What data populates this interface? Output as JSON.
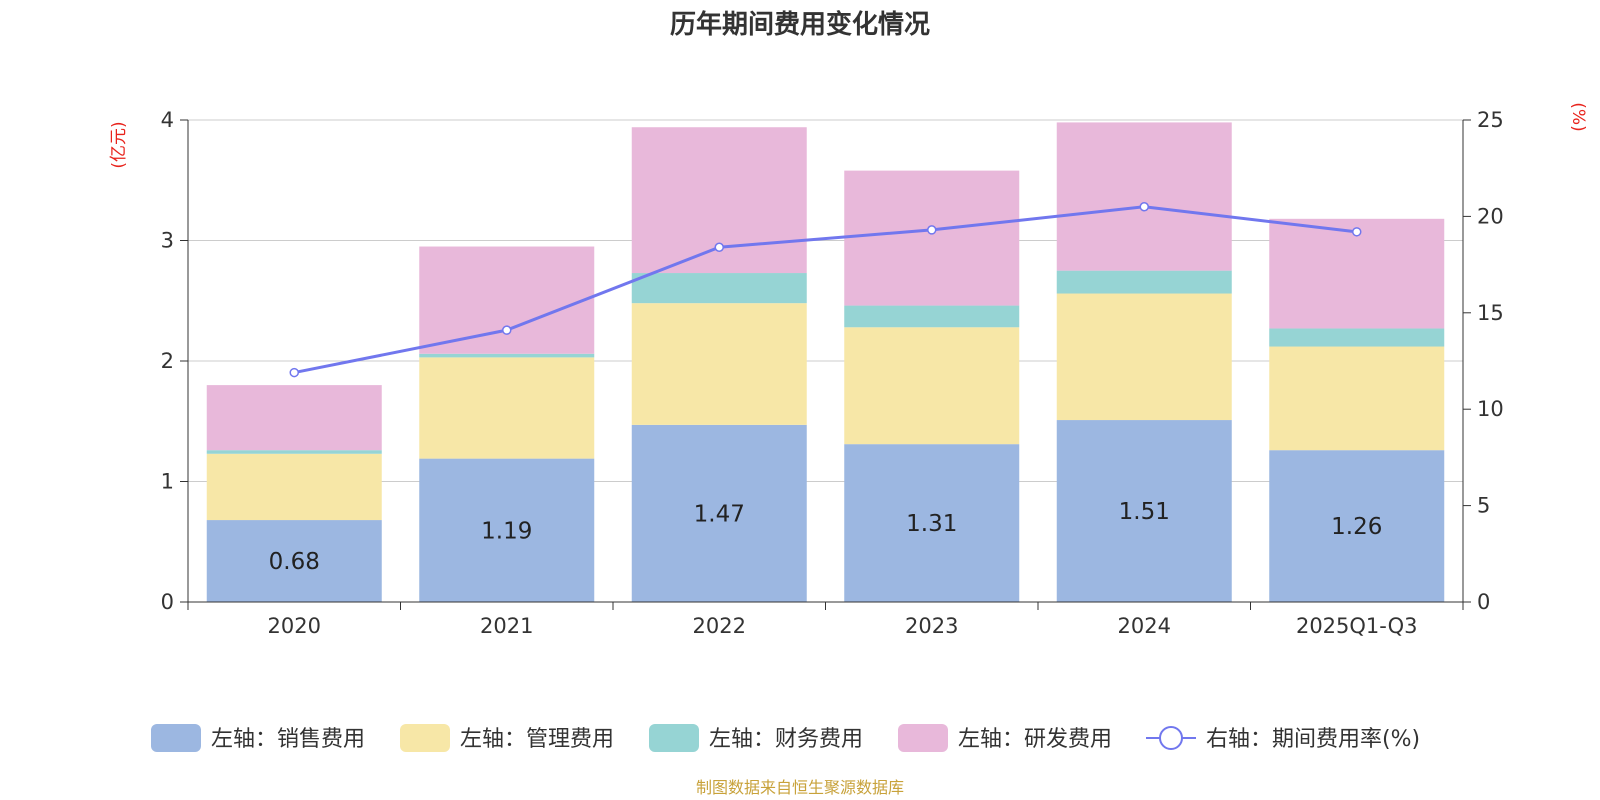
{
  "chart_data": {
    "type": "bar",
    "stacked": true,
    "title": "历年期间费用变化情况",
    "categories": [
      "2020",
      "2021",
      "2022",
      "2023",
      "2024",
      "2025Q1-Q3"
    ],
    "left_axis": {
      "unit": "(亿元)",
      "min": 0,
      "max": 4,
      "ticks": [
        "0",
        "1",
        "2",
        "3",
        "4"
      ]
    },
    "right_axis": {
      "unit": "(%)",
      "min": 0,
      "max": 25,
      "ticks": [
        "0",
        "5",
        "10",
        "15",
        "20",
        "25"
      ]
    },
    "series": [
      {
        "name": "左轴：销售费用",
        "type": "bar",
        "axis": "left",
        "color": "#9cb7e1",
        "values": [
          0.68,
          1.19,
          1.47,
          1.31,
          1.51,
          1.26
        ],
        "labels": [
          "0.68",
          "1.19",
          "1.47",
          "1.31",
          "1.51",
          "1.26"
        ]
      },
      {
        "name": "左轴：管理费用",
        "type": "bar",
        "axis": "left",
        "color": "#f7e7a7",
        "values": [
          0.55,
          0.84,
          1.01,
          0.97,
          1.05,
          0.86
        ]
      },
      {
        "name": "左轴：财务费用",
        "type": "bar",
        "axis": "left",
        "color": "#96d4d4",
        "values": [
          0.03,
          0.03,
          0.25,
          0.18,
          0.19,
          0.15
        ]
      },
      {
        "name": "左轴：研发费用",
        "type": "bar",
        "axis": "left",
        "color": "#e8b8da",
        "values": [
          0.54,
          0.89,
          1.21,
          1.12,
          1.23,
          0.91
        ]
      },
      {
        "name": "右轴：期间费用率(%)",
        "type": "line",
        "axis": "right",
        "color": "#7177ee",
        "values": [
          11.9,
          14.1,
          18.4,
          19.3,
          20.5,
          19.2
        ]
      }
    ],
    "legend_position": "bottom",
    "grid": true
  },
  "source": "制图数据来自恒生聚源数据库",
  "colors": {
    "axis_unit": "#e8231c",
    "source": "#c8a23a",
    "grid": "#cccccc",
    "axis_line": "#333333"
  }
}
